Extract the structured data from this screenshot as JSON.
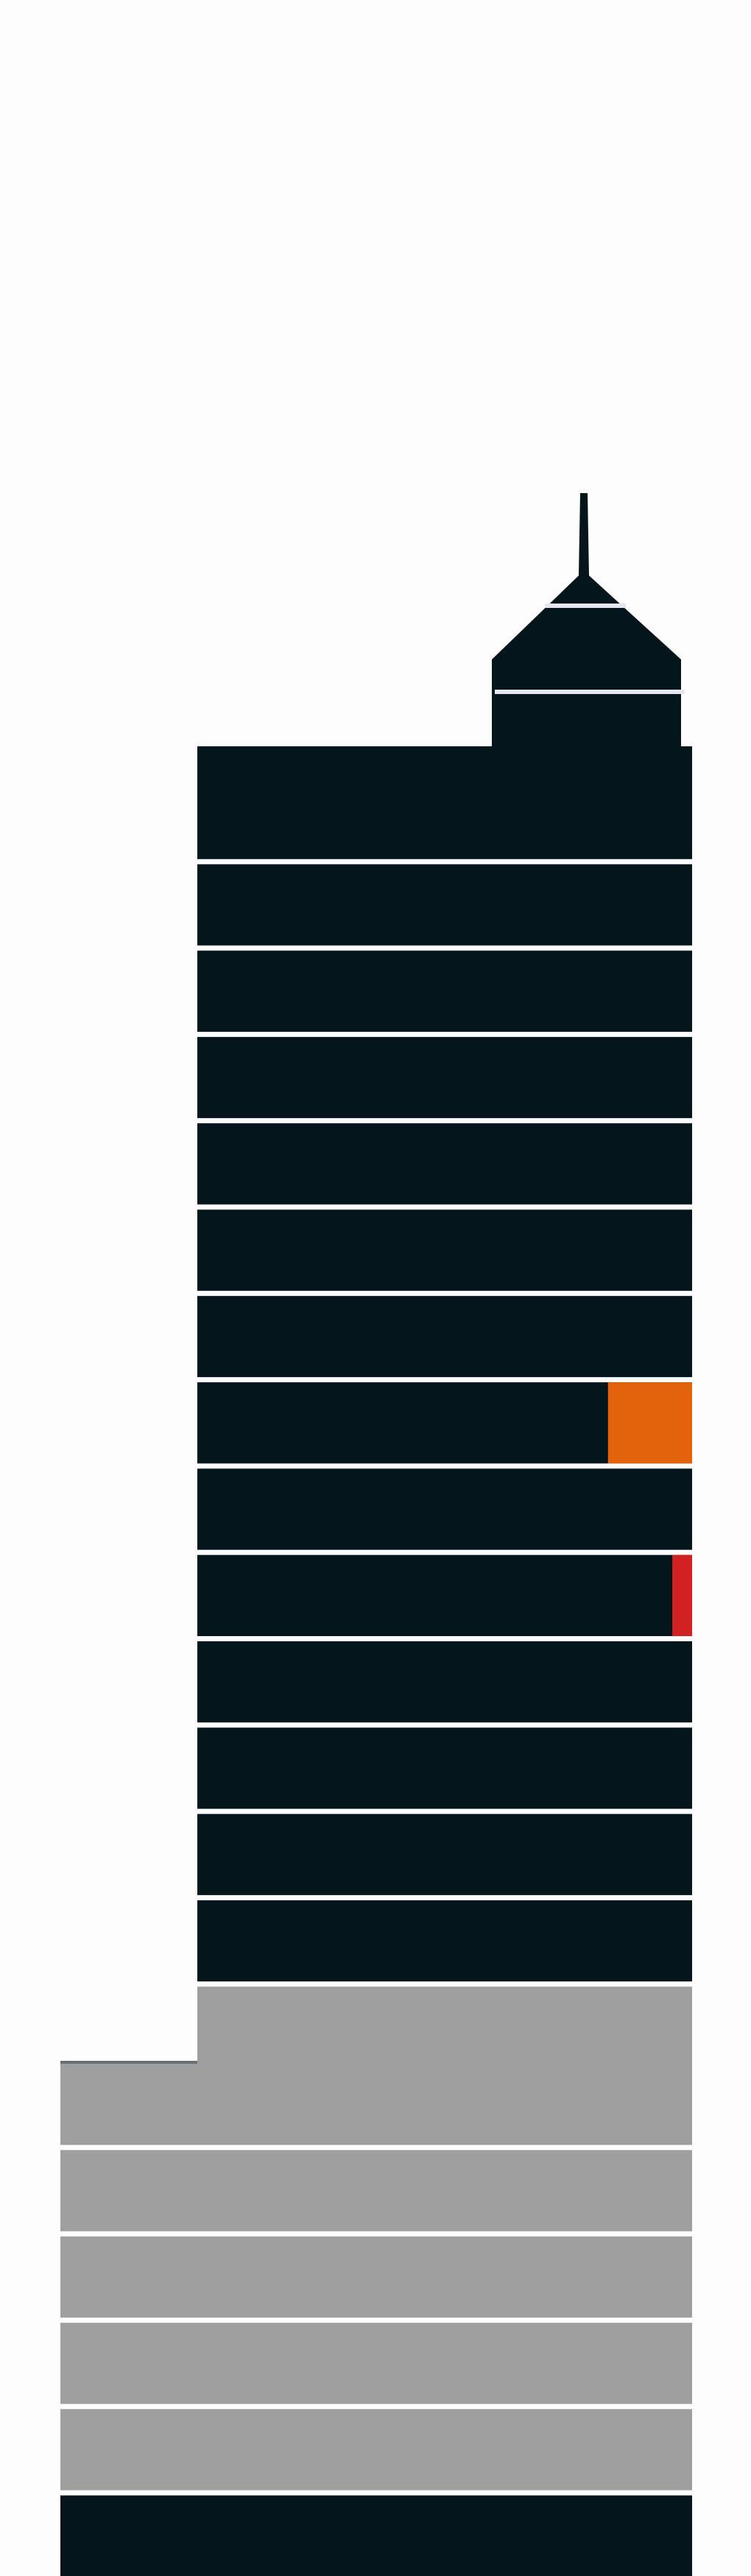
{
  "diagram": {
    "type": "stacked-building",
    "colors": {
      "background": "#fdfdfd",
      "tower": "#05151c",
      "podium": "#9f9f9f",
      "floor_separator": "#e6e6f0",
      "highlight_orange": "#e3630d",
      "highlight_red": "#d22121"
    },
    "tower_floors": [
      {
        "floor": 1,
        "fill": "tower"
      },
      {
        "floor": 2,
        "fill": "tower"
      },
      {
        "floor": 3,
        "fill": "tower"
      },
      {
        "floor": 4,
        "fill": "tower"
      },
      {
        "floor": 5,
        "fill": "tower"
      },
      {
        "floor": 6,
        "fill": "tower"
      },
      {
        "floor": 7,
        "fill": "tower"
      },
      {
        "floor": 8,
        "fill": "tower",
        "highlight": {
          "color": "highlight_orange",
          "share": 0.17
        }
      },
      {
        "floor": 9,
        "fill": "tower"
      },
      {
        "floor": 10,
        "fill": "tower",
        "highlight": {
          "color": "highlight_red",
          "share": 0.04
        }
      },
      {
        "floor": 11,
        "fill": "tower"
      },
      {
        "floor": 12,
        "fill": "tower"
      },
      {
        "floor": 13,
        "fill": "tower"
      },
      {
        "floor": 14,
        "fill": "tower"
      },
      {
        "floor": 15,
        "fill": "podium"
      }
    ],
    "podium_floors": [
      {
        "floor": 1,
        "fill": "podium"
      },
      {
        "floor": 2,
        "fill": "podium"
      },
      {
        "floor": 3,
        "fill": "podium"
      },
      {
        "floor": 4,
        "fill": "podium"
      },
      {
        "floor": 5,
        "fill": "podium"
      },
      {
        "floor": 6,
        "fill": "tower"
      }
    ]
  }
}
